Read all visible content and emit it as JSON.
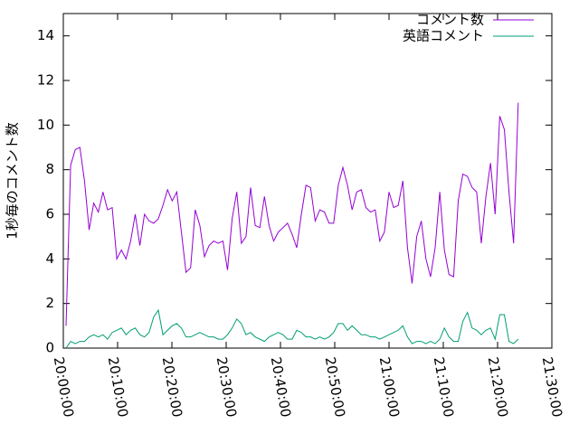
{
  "chart_data": {
    "type": "line",
    "ylabel": "1秒毎のコメント数",
    "x": [
      "20:00:30",
      "20:01:21",
      "20:02:12",
      "20:03:03",
      "20:03:54",
      "20:04:45",
      "20:05:36",
      "20:06:27",
      "20:07:18",
      "20:08:09",
      "20:09:00",
      "20:09:51",
      "20:10:42",
      "20:11:33",
      "20:12:24",
      "20:13:15",
      "20:14:06",
      "20:14:57",
      "20:15:48",
      "20:16:39",
      "20:17:30",
      "20:18:21",
      "20:19:12",
      "20:20:03",
      "20:20:54",
      "20:21:45",
      "20:22:36",
      "20:23:27",
      "20:24:18",
      "20:25:09",
      "20:26:00",
      "20:26:51",
      "20:27:42",
      "20:28:33",
      "20:29:24",
      "20:30:15",
      "20:31:06",
      "20:31:57",
      "20:32:48",
      "20:33:39",
      "20:34:30",
      "20:35:21",
      "20:36:12",
      "20:37:03",
      "20:37:54",
      "20:38:45",
      "20:39:36",
      "20:40:27",
      "20:41:18",
      "20:42:09",
      "20:43:00",
      "20:43:51",
      "20:44:42",
      "20:45:33",
      "20:46:24",
      "20:47:15",
      "20:48:06",
      "20:48:57",
      "20:49:48",
      "20:50:39",
      "20:51:30",
      "20:52:21",
      "20:53:12",
      "20:54:03",
      "20:54:54",
      "20:55:45",
      "20:56:36",
      "20:57:27",
      "20:58:18",
      "20:59:09",
      "21:00:00",
      "21:00:51",
      "21:01:42",
      "21:02:33",
      "21:03:24",
      "21:04:15",
      "21:05:06",
      "21:05:57",
      "21:06:48",
      "21:07:39",
      "21:08:30",
      "21:09:21",
      "21:10:12",
      "21:11:03",
      "21:11:54",
      "21:12:45",
      "21:13:36",
      "21:14:27",
      "21:15:18",
      "21:16:09",
      "21:17:00",
      "21:17:51",
      "21:18:42",
      "21:19:33",
      "21:20:24",
      "21:21:15",
      "21:22:06",
      "21:22:57",
      "21:23:48"
    ],
    "series": [
      {
        "name": "コメント数",
        "color": "#9400d3",
        "values": [
          1.0,
          8.2,
          8.9,
          9.0,
          7.5,
          5.3,
          6.5,
          6.1,
          7.0,
          6.2,
          6.3,
          4.0,
          4.4,
          4.0,
          4.8,
          6.0,
          4.6,
          6.0,
          5.7,
          5.6,
          5.8,
          6.4,
          7.1,
          6.6,
          7.0,
          5.2,
          3.4,
          3.6,
          6.2,
          5.5,
          4.1,
          4.6,
          4.8,
          4.7,
          4.8,
          3.5,
          5.8,
          7.0,
          4.7,
          5.0,
          7.2,
          5.5,
          5.4,
          6.8,
          5.5,
          4.8,
          5.2,
          5.4,
          5.6,
          5.1,
          4.5,
          6.0,
          7.3,
          7.2,
          5.7,
          6.2,
          6.1,
          5.6,
          5.6,
          7.3,
          8.1,
          7.3,
          6.2,
          7.0,
          7.1,
          6.3,
          6.1,
          6.2,
          4.8,
          5.2,
          7.0,
          6.3,
          6.4,
          7.5,
          4.5,
          2.9,
          5.0,
          5.7,
          4.0,
          3.2,
          4.5,
          7.0,
          4.4,
          3.3,
          3.2,
          6.6,
          7.8,
          7.7,
          7.2,
          7.0,
          4.7,
          6.8,
          8.3,
          6.0,
          10.4,
          9.8,
          7.0,
          4.7,
          11.0
        ]
      },
      {
        "name": "英語コメント",
        "color": "#009e73",
        "values": [
          0.0,
          0.3,
          0.2,
          0.3,
          0.3,
          0.5,
          0.6,
          0.5,
          0.6,
          0.4,
          0.7,
          0.8,
          0.9,
          0.6,
          0.8,
          0.9,
          0.6,
          0.5,
          0.7,
          1.4,
          1.7,
          0.6,
          0.8,
          1.0,
          1.1,
          0.9,
          0.5,
          0.5,
          0.6,
          0.7,
          0.6,
          0.5,
          0.5,
          0.4,
          0.4,
          0.6,
          0.9,
          1.3,
          1.1,
          0.6,
          0.7,
          0.5,
          0.4,
          0.3,
          0.5,
          0.6,
          0.7,
          0.6,
          0.4,
          0.4,
          0.8,
          0.7,
          0.5,
          0.5,
          0.4,
          0.5,
          0.4,
          0.5,
          0.7,
          1.1,
          1.1,
          0.8,
          1.0,
          0.8,
          0.6,
          0.6,
          0.5,
          0.5,
          0.4,
          0.5,
          0.6,
          0.7,
          0.8,
          1.0,
          0.5,
          0.2,
          0.3,
          0.3,
          0.2,
          0.3,
          0.2,
          0.4,
          0.9,
          0.5,
          0.3,
          0.3,
          1.2,
          1.6,
          0.9,
          0.8,
          0.6,
          0.8,
          0.9,
          0.4,
          1.5,
          1.5,
          0.3,
          0.2,
          0.4
        ]
      }
    ],
    "xlim": [
      "20:00:00",
      "21:30:00"
    ],
    "xticks": [
      "20:00:00",
      "20:10:00",
      "20:20:00",
      "20:30:00",
      "20:40:00",
      "20:50:00",
      "21:00:00",
      "21:10:00",
      "21:20:00",
      "21:30:00"
    ],
    "ylim": [
      0,
      15
    ],
    "yticks": [
      0,
      2,
      4,
      6,
      8,
      10,
      12,
      14
    ],
    "legend": "top-right"
  }
}
